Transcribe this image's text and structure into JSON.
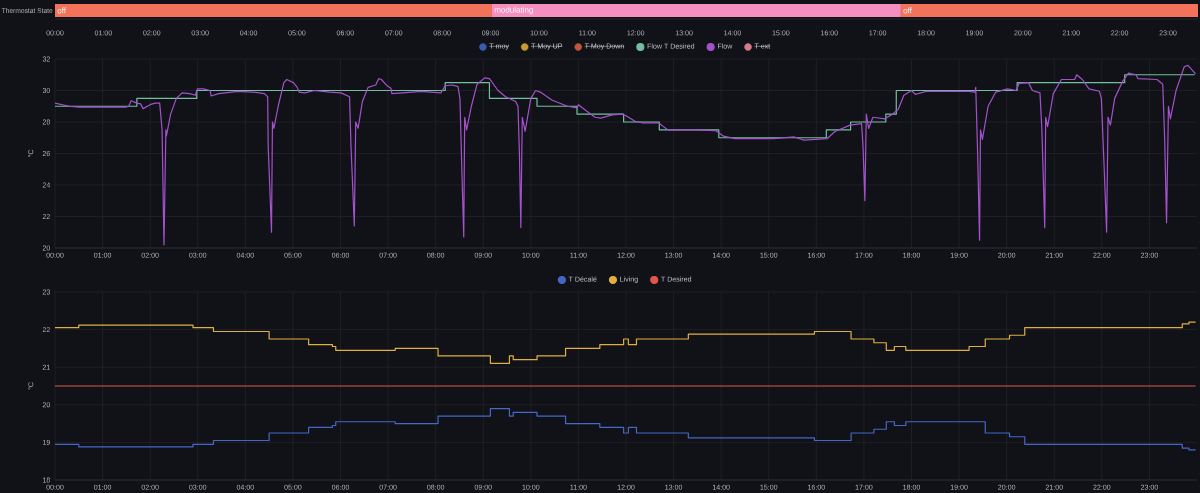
{
  "chart_data": [
    {
      "type": "bar",
      "orientation": "horizontal",
      "stacked": true,
      "categories": [
        "Thermostat State"
      ],
      "xlim": [
        0,
        23.62
      ],
      "xticks": [
        {
          "value": 0,
          "label": "00:00"
        },
        {
          "value": 1,
          "label": "01:00"
        },
        {
          "value": 2,
          "label": "02:00"
        },
        {
          "value": 3,
          "label": "03:00"
        },
        {
          "value": 4,
          "label": "04:00"
        },
        {
          "value": 5,
          "label": "05:00"
        },
        {
          "value": 6,
          "label": "06:00"
        },
        {
          "value": 7,
          "label": "07:00"
        },
        {
          "value": 8,
          "label": "08:00"
        },
        {
          "value": 9,
          "label": "09:00"
        },
        {
          "value": 10,
          "label": "10:00"
        },
        {
          "value": 11,
          "label": "11:00"
        },
        {
          "value": 12,
          "label": "12:00"
        },
        {
          "value": 13,
          "label": "13:00"
        },
        {
          "value": 14,
          "label": "14:00"
        },
        {
          "value": 15,
          "label": "15:00"
        },
        {
          "value": 16,
          "label": "16:00"
        },
        {
          "value": 17,
          "label": "17:00"
        },
        {
          "value": 18,
          "label": "18:00"
        },
        {
          "value": 19,
          "label": "19:00"
        },
        {
          "value": 20,
          "label": "20:00"
        },
        {
          "value": 21,
          "label": "21:00"
        },
        {
          "value": 22,
          "label": "22:00"
        },
        {
          "value": 23,
          "label": "23:00"
        }
      ],
      "series": [
        {
          "color": "#f2735a",
          "values": [
            9.03
          ],
          "value_labels": [
            "off"
          ]
        },
        {
          "color": "#f48fc0",
          "values": [
            8.45
          ],
          "value_labels": [
            "modulating"
          ]
        },
        {
          "color": "#f2735a",
          "values": [
            6.14
          ],
          "value_labels": [
            "off"
          ]
        }
      ]
    },
    {
      "type": "line",
      "ylabel": "°C",
      "xlim": [
        0,
        24
      ],
      "ylim": [
        20,
        32
      ],
      "grid": true,
      "legend": "top",
      "xticks": [
        {
          "value": 0,
          "label": "00:00"
        },
        {
          "value": 1,
          "label": "01:00"
        },
        {
          "value": 2,
          "label": "02:00"
        },
        {
          "value": 3,
          "label": "03:00"
        },
        {
          "value": 4,
          "label": "04:00"
        },
        {
          "value": 5,
          "label": "05:00"
        },
        {
          "value": 6,
          "label": "06:00"
        },
        {
          "value": 7,
          "label": "07:00"
        },
        {
          "value": 8,
          "label": "08:00"
        },
        {
          "value": 9,
          "label": "09:00"
        },
        {
          "value": 10,
          "label": "10:00"
        },
        {
          "value": 11,
          "label": "11:00"
        },
        {
          "value": 12,
          "label": "12:00"
        },
        {
          "value": 13,
          "label": "13:00"
        },
        {
          "value": 14,
          "label": "14:00"
        },
        {
          "value": 15,
          "label": "15:00"
        },
        {
          "value": 16,
          "label": "16:00"
        },
        {
          "value": 17,
          "label": "17:00"
        },
        {
          "value": 18,
          "label": "18:00"
        },
        {
          "value": 19,
          "label": "19:00"
        },
        {
          "value": 20,
          "label": "20:00"
        },
        {
          "value": 21,
          "label": "21:00"
        },
        {
          "value": 22,
          "label": "22:00"
        },
        {
          "value": 23,
          "label": "23:00"
        }
      ],
      "yticks": [
        20,
        22,
        24,
        26,
        28,
        30,
        32
      ],
      "series": [
        {
          "name": "T moy",
          "color": "#3a5bb0"
        },
        {
          "name": "T Moy UP",
          "color": "#c99b2f"
        },
        {
          "name": "T Moy Down",
          "color": "#c4533f"
        },
        {
          "name": "Flow T Desired",
          "type": "step",
          "color": "#73bf9f",
          "x": [
            0,
            1.72,
            2.98,
            8.2,
            9.13,
            10.13,
            10.97,
            11.95,
            12.7,
            13.95,
            16.21,
            16.72,
            17.46,
            17.68,
            20.22,
            22.48,
            23.95
          ],
          "values": [
            29,
            29.5,
            30,
            30.5,
            29.5,
            29,
            28.5,
            28,
            27.5,
            27,
            27.5,
            28,
            28.5,
            30,
            30.5,
            31,
            31
          ]
        },
        {
          "name": "Flow",
          "color": "#a352cc",
          "x": [
            0,
            0.3,
            0.5,
            1.0,
            1.5,
            1.55,
            1.6,
            1.72,
            1.8,
            1.85,
            2.0,
            2.1,
            2.2,
            2.25,
            2.29,
            2.33,
            2.34,
            2.43,
            2.55,
            2.67,
            2.83,
            2.95,
            2.99,
            3.12,
            3.26,
            3.28,
            3.44,
            3.84,
            4.16,
            4.4,
            4.47,
            4.48,
            4.55,
            4.57,
            4.6,
            4.69,
            4.81,
            4.87,
            5.01,
            5.09,
            5.13,
            5.25,
            5.45,
            5.77,
            6.01,
            6.19,
            6.22,
            6.29,
            6.32,
            6.37,
            6.46,
            6.58,
            6.74,
            6.8,
            6.86,
            6.98,
            7.06,
            7.08,
            7.3,
            7.7,
            8.11,
            8.2,
            8.35,
            8.47,
            8.51,
            8.55,
            8.59,
            8.61,
            8.65,
            8.75,
            8.87,
            9.03,
            9.13,
            9.31,
            9.47,
            9.68,
            9.73,
            9.76,
            9.79,
            9.82,
            9.88,
            10.0,
            10.1,
            10.2,
            10.44,
            10.77,
            10.97,
            11.0,
            11.17,
            11.35,
            11.47,
            11.71,
            11.91,
            12.0,
            12.19,
            12.35,
            12.68,
            12.88,
            13.48,
            13.89,
            14.05,
            14.29,
            15.1,
            15.54,
            15.74,
            16.23,
            16.39,
            16.71,
            16.95,
            16.98,
            17.02,
            17.05,
            17.1,
            17.19,
            17.44,
            17.6,
            17.72,
            17.84,
            18.0,
            18.08,
            18.32,
            18.73,
            19.21,
            19.33,
            19.35,
            19.39,
            19.43,
            19.45,
            19.49,
            19.61,
            19.77,
            20.02,
            20.2,
            20.26,
            20.46,
            20.54,
            20.7,
            20.74,
            20.8,
            20.82,
            20.86,
            20.98,
            21.15,
            21.43,
            21.47,
            21.59,
            21.73,
            21.95,
            21.99,
            22.05,
            22.1,
            22.13,
            22.18,
            22.27,
            22.44,
            22.56,
            22.72,
            22.76,
            23.16,
            23.28,
            23.32,
            23.36,
            23.4,
            23.44,
            23.56,
            23.73,
            23.81,
            23.97
          ],
          "values": [
            29.2,
            29.0,
            28.95,
            28.95,
            28.95,
            29.0,
            29.35,
            29.2,
            29.15,
            28.85,
            29.1,
            29.2,
            29.2,
            27.5,
            20.2,
            27.5,
            27.1,
            28.5,
            29.5,
            29.85,
            29.8,
            29.7,
            30.1,
            30.1,
            30.0,
            29.65,
            29.8,
            29.95,
            29.9,
            29.8,
            29.6,
            26.5,
            21.0,
            28.0,
            27.6,
            29.0,
            30.5,
            30.7,
            30.5,
            30.2,
            29.9,
            29.85,
            30.0,
            29.9,
            29.85,
            29.6,
            26.5,
            21.4,
            28.0,
            27.6,
            29.3,
            30.2,
            30.35,
            30.75,
            30.7,
            30.3,
            30.15,
            29.8,
            29.85,
            29.95,
            29.85,
            30.3,
            30.35,
            30.25,
            29.5,
            25.0,
            20.7,
            28.3,
            27.5,
            29.0,
            30.4,
            30.8,
            30.75,
            30.0,
            29.6,
            29.3,
            29.0,
            26.0,
            21.3,
            28.3,
            27.4,
            29.5,
            30.0,
            29.9,
            29.4,
            29.0,
            28.9,
            29.1,
            28.7,
            28.3,
            28.25,
            28.45,
            28.5,
            28.4,
            28.05,
            27.95,
            27.95,
            27.5,
            27.5,
            27.45,
            27.1,
            26.95,
            26.95,
            27.05,
            26.85,
            26.95,
            27.4,
            27.8,
            27.9,
            26.5,
            23.0,
            28.5,
            27.6,
            28.3,
            28.2,
            28.5,
            28.8,
            29.7,
            30.0,
            29.75,
            29.95,
            29.95,
            29.95,
            29.9,
            30.2,
            26.0,
            20.5,
            27.5,
            26.9,
            29.0,
            29.9,
            30.1,
            30.0,
            30.45,
            30.5,
            30.0,
            29.85,
            27.5,
            21.3,
            28.3,
            27.7,
            29.8,
            30.7,
            30.7,
            31.0,
            30.7,
            30.1,
            29.95,
            29.5,
            25.0,
            21.0,
            28.3,
            27.8,
            29.5,
            30.6,
            31.1,
            31.0,
            30.75,
            30.7,
            30.4,
            27.0,
            21.6,
            29.0,
            28.2,
            30.0,
            31.5,
            31.6,
            31.05
          ]
        },
        {
          "name": "T ext",
          "color": "#d67a8c"
        }
      ]
    },
    {
      "type": "step",
      "ylabel": "°C",
      "xlim": [
        0,
        24
      ],
      "ylim": [
        18,
        23
      ],
      "grid": true,
      "legend": "top",
      "xticks": [
        {
          "value": 0,
          "label": "00:00"
        },
        {
          "value": 1,
          "label": "01:00"
        },
        {
          "value": 2,
          "label": "02:00"
        },
        {
          "value": 3,
          "label": "03:00"
        },
        {
          "value": 4,
          "label": "04:00"
        },
        {
          "value": 5,
          "label": "05:00"
        },
        {
          "value": 6,
          "label": "06:00"
        },
        {
          "value": 7,
          "label": "07:00"
        },
        {
          "value": 8,
          "label": "08:00"
        },
        {
          "value": 9,
          "label": "09:00"
        },
        {
          "value": 10,
          "label": "10:00"
        },
        {
          "value": 11,
          "label": "11:00"
        },
        {
          "value": 12,
          "label": "12:00"
        },
        {
          "value": 13,
          "label": "13:00"
        },
        {
          "value": 14,
          "label": "14:00"
        },
        {
          "value": 15,
          "label": "15:00"
        },
        {
          "value": 16,
          "label": "16:00"
        },
        {
          "value": 17,
          "label": "17:00"
        },
        {
          "value": 18,
          "label": "18:00"
        },
        {
          "value": 19,
          "label": "19:00"
        },
        {
          "value": 20,
          "label": "20:00"
        },
        {
          "value": 21,
          "label": "21:00"
        },
        {
          "value": 22,
          "label": "22:00"
        },
        {
          "value": 23,
          "label": "23:00"
        }
      ],
      "yticks": [
        18,
        19,
        20,
        21,
        22,
        23
      ],
      "series": [
        {
          "name": "T Décalé",
          "color": "#4467c8",
          "x": [
            0,
            0.5,
            2.9,
            3.33,
            4.5,
            5.33,
            5.83,
            5.9,
            7.15,
            8.05,
            9.15,
            9.55,
            9.63,
            10.13,
            10.73,
            11.45,
            11.95,
            12.05,
            12.22,
            13.31,
            15.96,
            16.73,
            17.21,
            17.47,
            17.64,
            17.88,
            19.21,
            19.55,
            20.06,
            20.38,
            23.69,
            23.83,
            23.97
          ],
          "values": [
            18.95,
            18.88,
            18.95,
            19.05,
            19.25,
            19.4,
            19.45,
            19.55,
            19.5,
            19.7,
            19.9,
            19.7,
            19.8,
            19.7,
            19.5,
            19.4,
            19.25,
            19.4,
            19.25,
            19.12,
            19.05,
            19.25,
            19.35,
            19.55,
            19.45,
            19.55,
            19.55,
            19.25,
            19.15,
            18.95,
            18.85,
            18.8,
            18.8
          ]
        },
        {
          "name": "Living",
          "color": "#e0b03e",
          "x": [
            0,
            0.5,
            2.9,
            3.33,
            4.5,
            5.33,
            5.83,
            5.9,
            7.15,
            8.05,
            9.15,
            9.55,
            9.63,
            10.13,
            10.73,
            11.45,
            11.95,
            12.05,
            12.22,
            13.31,
            15.96,
            16.73,
            17.21,
            17.47,
            17.64,
            17.88,
            19.21,
            19.55,
            20.06,
            20.38,
            23.69,
            23.83,
            23.97
          ],
          "values": [
            22.05,
            22.12,
            22.05,
            21.95,
            21.75,
            21.6,
            21.55,
            21.45,
            21.5,
            21.3,
            21.1,
            21.3,
            21.2,
            21.3,
            21.5,
            21.6,
            21.75,
            21.6,
            21.75,
            21.88,
            21.95,
            21.75,
            21.65,
            21.45,
            21.55,
            21.45,
            21.55,
            21.75,
            21.85,
            22.05,
            22.15,
            22.2,
            22.2
          ]
        },
        {
          "name": "T Desired",
          "color": "#e0584a",
          "x": [
            0,
            23.97
          ],
          "values": [
            20.5,
            20.5
          ]
        }
      ]
    }
  ]
}
